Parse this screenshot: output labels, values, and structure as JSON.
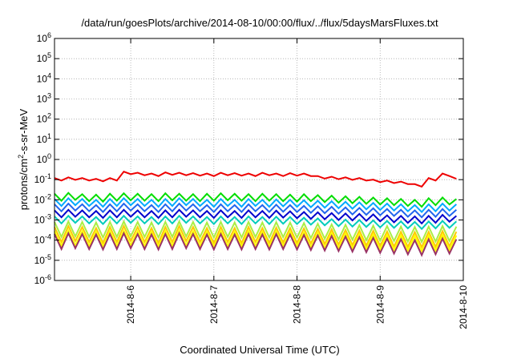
{
  "chart_data": {
    "type": "line",
    "title": "/data/run/goesPlots/archive/2014-08-10/00:00/flux/../flux/5daysMarsFluxes.txt",
    "xlabel": "Coordinated Universal Time (UTC)",
    "ylabel": {
      "base": "protons/cm",
      "sup": "2",
      "rest": "-s-sr-MeV"
    },
    "y_scale": "log",
    "ylim": [
      1e-06,
      1000000.0
    ],
    "xlim": [
      "2014-08-05T02:00",
      "2014-08-10T00:00"
    ],
    "grid": true,
    "x_ticks": [
      {
        "label": "2014-8-6",
        "value": "2014-08-06T00:00"
      },
      {
        "label": "2014-8-7",
        "value": "2014-08-07T00:00"
      },
      {
        "label": "2014-8-8",
        "value": "2014-08-08T00:00"
      },
      {
        "label": "2014-8-9",
        "value": "2014-08-09T00:00"
      },
      {
        "label": "2014-8-10",
        "value": "2014-08-10T00:00"
      }
    ],
    "y_ticks": [
      {
        "base": "10",
        "exp": "-6",
        "value": -6
      },
      {
        "base": "10",
        "exp": "-5",
        "value": -5
      },
      {
        "base": "10",
        "exp": "-4",
        "value": -4
      },
      {
        "base": "10",
        "exp": "-3",
        "value": -3
      },
      {
        "base": "10",
        "exp": "-2",
        "value": -2
      },
      {
        "base": "10",
        "exp": "-1",
        "value": -1
      },
      {
        "base": "10",
        "exp": "0",
        "value": 0
      },
      {
        "base": "10",
        "exp": "1",
        "value": 1
      },
      {
        "base": "10",
        "exp": "2",
        "value": 2
      },
      {
        "base": "10",
        "exp": "3",
        "value": 3
      },
      {
        "base": "10",
        "exp": "4",
        "value": 4
      },
      {
        "base": "10",
        "exp": "5",
        "value": 5
      },
      {
        "base": "10",
        "exp": "6",
        "value": 6
      }
    ],
    "x": [
      "2014-08-05T02:00",
      "2014-08-05T06:00",
      "2014-08-05T10:00",
      "2014-08-05T14:00",
      "2014-08-05T18:00",
      "2014-08-05T22:00",
      "2014-08-06T02:00",
      "2014-08-06T06:00",
      "2014-08-06T10:00",
      "2014-08-06T14:00",
      "2014-08-06T18:00",
      "2014-08-06T22:00",
      "2014-08-07T02:00",
      "2014-08-07T06:00",
      "2014-08-07T10:00",
      "2014-08-07T14:00",
      "2014-08-07T18:00",
      "2014-08-07T22:00",
      "2014-08-08T02:00",
      "2014-08-08T06:00",
      "2014-08-08T10:00",
      "2014-08-08T14:00",
      "2014-08-08T18:00",
      "2014-08-08T22:00",
      "2014-08-09T02:00",
      "2014-08-09T06:00",
      "2014-08-09T10:00",
      "2014-08-09T14:00",
      "2014-08-09T18:00",
      "2014-08-09T22:00"
    ],
    "series": [
      {
        "color": "#ee0000",
        "values": [
          0.12,
          0.13,
          0.12,
          0.11,
          0.12,
          0.25,
          0.22,
          0.2,
          0.23,
          0.22,
          0.21,
          0.2,
          0.22,
          0.21,
          0.2,
          0.22,
          0.2,
          0.21,
          0.2,
          0.15,
          0.14,
          0.13,
          0.12,
          0.1,
          0.09,
          0.08,
          0.06,
          0.12,
          0.2,
          0.11
        ]
      },
      {
        "color": "#00dd00",
        "values": [
          0.02,
          0.022,
          0.019,
          0.018,
          0.02,
          0.021,
          0.02,
          0.019,
          0.021,
          0.02,
          0.019,
          0.02,
          0.021,
          0.02,
          0.019,
          0.02,
          0.019,
          0.018,
          0.019,
          0.017,
          0.016,
          0.015,
          0.014,
          0.013,
          0.012,
          0.011,
          0.01,
          0.012,
          0.013,
          0.011
        ]
      },
      {
        "color": "#00aaff",
        "values": [
          0.011,
          0.012,
          0.011,
          0.01,
          0.011,
          0.012,
          0.011,
          0.01,
          0.011,
          0.012,
          0.011,
          0.01,
          0.011,
          0.01,
          0.011,
          0.01,
          0.0105,
          0.01,
          0.0095,
          0.009,
          0.0085,
          0.008,
          0.0075,
          0.007,
          0.0065,
          0.006,
          0.0055,
          0.006,
          0.0065,
          0.006
        ]
      },
      {
        "color": "#2266ee",
        "values": [
          0.006,
          0.0065,
          0.006,
          0.0055,
          0.006,
          0.0065,
          0.006,
          0.0055,
          0.006,
          0.0065,
          0.006,
          0.0055,
          0.006,
          0.0055,
          0.006,
          0.0055,
          0.0057,
          0.0055,
          0.005,
          0.0048,
          0.0045,
          0.0042,
          0.004,
          0.0038,
          0.0035,
          0.0032,
          0.003,
          0.0032,
          0.0035,
          0.0032
        ]
      },
      {
        "color": "#0000cc",
        "values": [
          0.003,
          0.0032,
          0.003,
          0.0028,
          0.003,
          0.0032,
          0.003,
          0.0028,
          0.003,
          0.0032,
          0.003,
          0.0028,
          0.003,
          0.0028,
          0.003,
          0.0028,
          0.0029,
          0.0027,
          0.0025,
          0.0024,
          0.0022,
          0.0021,
          0.002,
          0.0019,
          0.0017,
          0.0016,
          0.0015,
          0.0016,
          0.0018,
          0.0016
        ]
      },
      {
        "color": "#00ccbb",
        "values": [
          0.0015,
          0.0016,
          0.0015,
          0.0014,
          0.0015,
          0.0016,
          0.0015,
          0.0014,
          0.0015,
          0.0016,
          0.0015,
          0.0014,
          0.0015,
          0.0014,
          0.0015,
          0.0014,
          0.00145,
          0.0014,
          0.0013,
          0.0012,
          0.0011,
          0.00105,
          0.001,
          0.00095,
          0.0009,
          0.00085,
          0.0008,
          0.00085,
          0.0009,
          0.00085
        ]
      },
      {
        "color": "#aaee44",
        "values": [
          0.0008,
          0.00085,
          0.0008,
          0.00075,
          0.0008,
          0.00085,
          0.0008,
          0.00075,
          0.0008,
          0.00085,
          0.0008,
          0.00075,
          0.0008,
          0.00075,
          0.0008,
          0.00075,
          0.00078,
          0.00075,
          0.0007,
          0.00065,
          0.0006,
          0.00058,
          0.00055,
          0.00052,
          0.0005,
          0.00047,
          0.00045,
          0.00047,
          0.0005,
          0.00047
        ]
      },
      {
        "color": "#ffcc00",
        "values": [
          0.00045,
          0.0005,
          0.00045,
          0.0004,
          0.00045,
          0.0005,
          0.00045,
          0.0004,
          0.00045,
          0.0005,
          0.00045,
          0.0004,
          0.00045,
          0.0004,
          0.00045,
          0.0004,
          0.00042,
          0.0004,
          0.00038,
          0.00036,
          0.00034,
          0.00032,
          0.0003,
          0.00029,
          0.00027,
          0.00026,
          0.00025,
          0.00026,
          0.00028,
          0.00026
        ]
      },
      {
        "color": "#ffff00",
        "values": [
          0.00028,
          0.0003,
          0.00028,
          0.00026,
          0.00028,
          0.0003,
          0.00028,
          0.00026,
          0.00028,
          0.0003,
          0.00028,
          0.00026,
          0.00028,
          0.00026,
          0.00028,
          0.00026,
          0.00027,
          0.00026,
          0.00024,
          0.00023,
          0.00022,
          0.00021,
          0.0002,
          0.00019,
          0.00018,
          0.00017,
          0.00016,
          0.00017,
          0.00018,
          0.00017
        ]
      },
      {
        "color": "#993366",
        "values": [
          0.0002,
          0.00022,
          0.0002,
          0.00019,
          0.0002,
          0.00022,
          0.0002,
          0.00019,
          0.0002,
          0.00022,
          0.0002,
          0.00019,
          0.0002,
          0.00019,
          0.0002,
          0.00019,
          0.0002,
          0.00019,
          0.00018,
          0.00017,
          0.00016,
          0.00015,
          0.00014,
          0.00013,
          0.00012,
          0.00011,
          0.0001,
          0.00011,
          0.00012,
          0.00011
        ]
      }
    ]
  }
}
